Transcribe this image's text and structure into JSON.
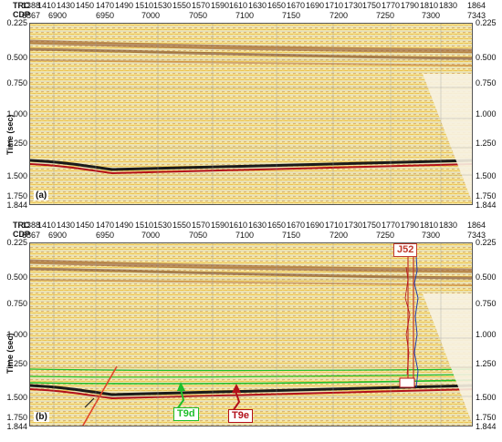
{
  "header": {
    "trc_label": "TRC",
    "cdp_label": "CDP",
    "trc_values": [
      "1388",
      "1410",
      "1430",
      "1450",
      "1470",
      "1490",
      "1510",
      "1530",
      "1550",
      "1570",
      "1590",
      "1610",
      "1630",
      "1650",
      "1670",
      "1690",
      "1710",
      "1730",
      "1750",
      "1770",
      "1790",
      "1810",
      "1830",
      "1864"
    ],
    "cdp_values": [
      "6867",
      "6900",
      "6950",
      "7000",
      "7050",
      "7100",
      "7150",
      "7200",
      "7250",
      "7300",
      "7343"
    ]
  },
  "time_axis": {
    "label": "Time (sec)",
    "ticks": [
      "0.225",
      "0.500",
      "0.750",
      "1.000",
      "1.250",
      "1.500",
      "1.750",
      "1.844"
    ]
  },
  "panels": [
    {
      "tag": "(a)"
    },
    {
      "tag": "(b)"
    }
  ],
  "annotations": {
    "well": "J52",
    "horizon_t9d": "T9d",
    "horizon_t9e": "T9e"
  },
  "colors": {
    "t9d": "#1fbf2a",
    "t9e": "#b3101a",
    "well_box": "#c0392b",
    "fault": "#e0452a"
  }
}
